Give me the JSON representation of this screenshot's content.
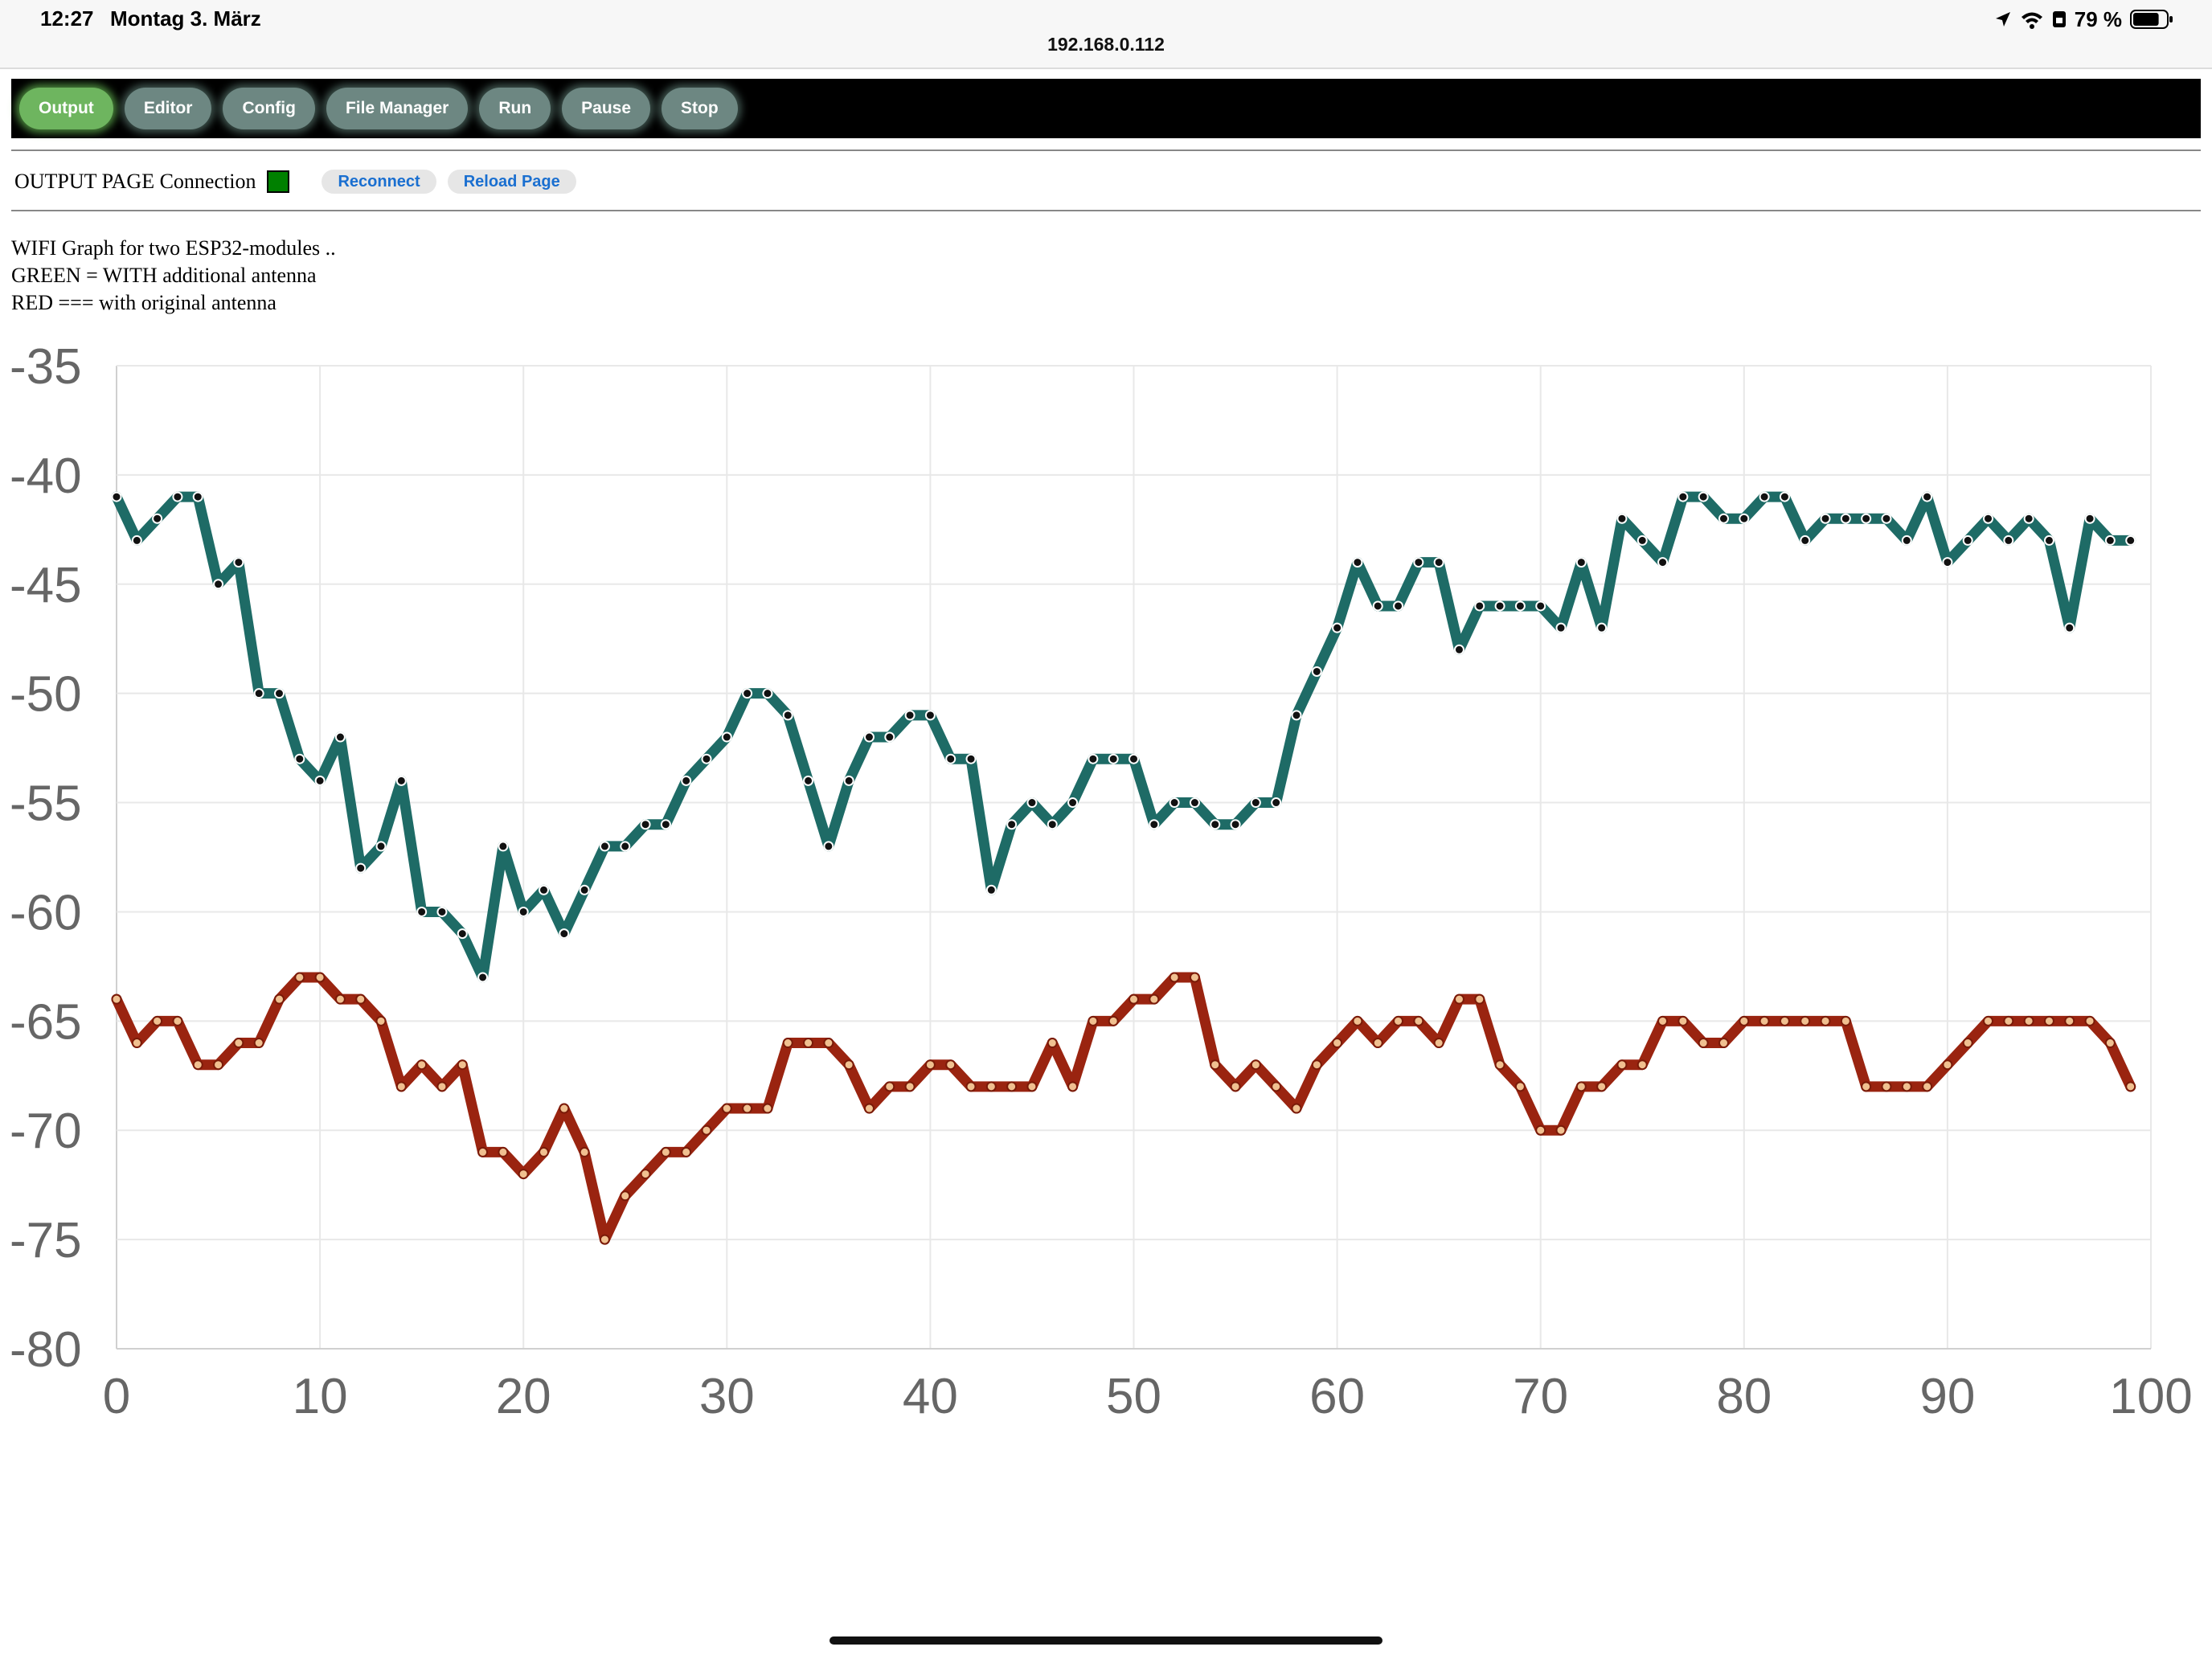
{
  "status_bar": {
    "time": "12:27",
    "date": "Montag 3. März",
    "url": "192.168.0.112",
    "battery_percent": "79 %",
    "icons": [
      "location-arrow-icon",
      "wifi-icon",
      "lock-rotation-icon",
      "battery-icon"
    ],
    "battery_level": 0.79
  },
  "nav": {
    "buttons": [
      "Output",
      "Editor",
      "Config",
      "File Manager",
      "Run",
      "Pause",
      "Stop"
    ],
    "active": "Output"
  },
  "connection": {
    "label": "OUTPUT PAGE Connection",
    "status_color": "#008000",
    "reconnect_label": "Reconnect",
    "reload_label": "Reload Page"
  },
  "description": {
    "line1": "WIFI Graph for two ESP32-modules ..",
    "line2": "GREEN = WITH additional antenna",
    "line3": "RED === with original antenna"
  },
  "chart_data": {
    "type": "line",
    "title": "",
    "xlabel": "",
    "ylabel": "",
    "xlim": [
      0,
      100
    ],
    "ylim": [
      -80,
      -35
    ],
    "x_ticks": [
      "0",
      "10",
      "20",
      "30",
      "40",
      "50",
      "60",
      "70",
      "80",
      "90",
      "100"
    ],
    "y_ticks": [
      "-35",
      "-40",
      "-45",
      "-50",
      "-55",
      "-60",
      "-65",
      "-70",
      "-75",
      "-80"
    ],
    "grid": true,
    "legend": "none",
    "series": [
      {
        "color": "#1e6b66",
        "values": [
          -41,
          -43,
          -42,
          -41,
          -41,
          -45,
          -44,
          -50,
          -50,
          -53,
          -54,
          -52,
          -58,
          -57,
          -54,
          -60,
          -60,
          -61,
          -63,
          -57,
          -60,
          -59,
          -61,
          -59,
          -57,
          -57,
          -56,
          -56,
          -54,
          -53,
          -52,
          -50,
          -50,
          -51,
          -54,
          -57,
          -54,
          -52,
          -52,
          -51,
          -51,
          -53,
          -53,
          -59,
          -56,
          -55,
          -56,
          -55,
          -53,
          -53,
          -53,
          -56,
          -55,
          -55,
          -56,
          -56,
          -55,
          -55,
          -51,
          -49,
          -47,
          -44,
          -46,
          -46,
          -44,
          -44,
          -48,
          -46,
          -46,
          -46,
          -46,
          -47,
          -44,
          -47,
          -42,
          -43,
          -44,
          -41,
          -41,
          -42,
          -42,
          -41,
          -41,
          -43,
          -42,
          -42,
          -42,
          -42,
          -43,
          -41,
          -44,
          -43,
          -42,
          -43,
          -42,
          -43,
          -47,
          -42,
          -43,
          -43
        ]
      },
      {
        "color": "#9a2410",
        "values": [
          -64,
          -66,
          -65,
          -65,
          -67,
          -67,
          -66,
          -66,
          -64,
          -63,
          -63,
          -64,
          -64,
          -65,
          -68,
          -67,
          -68,
          -67,
          -71,
          -71,
          -72,
          -71,
          -69,
          -71,
          -75,
          -73,
          -72,
          -71,
          -71,
          -70,
          -69,
          -69,
          -69,
          -66,
          -66,
          -66,
          -67,
          -69,
          -68,
          -68,
          -67,
          -67,
          -68,
          -68,
          -68,
          -68,
          -66,
          -68,
          -65,
          -65,
          -64,
          -64,
          -63,
          -63,
          -67,
          -68,
          -67,
          -68,
          -69,
          -67,
          -66,
          -65,
          -66,
          -65,
          -65,
          -66,
          -64,
          -64,
          -67,
          -68,
          -70,
          -70,
          -68,
          -68,
          -67,
          -67,
          -65,
          -65,
          -66,
          -66,
          -65,
          -65,
          -65,
          -65,
          -65,
          -65,
          -68,
          -68,
          -68,
          -68,
          -67,
          -66,
          -65,
          -65,
          -65,
          -65,
          -65,
          -65,
          -66,
          -68
        ]
      }
    ]
  }
}
